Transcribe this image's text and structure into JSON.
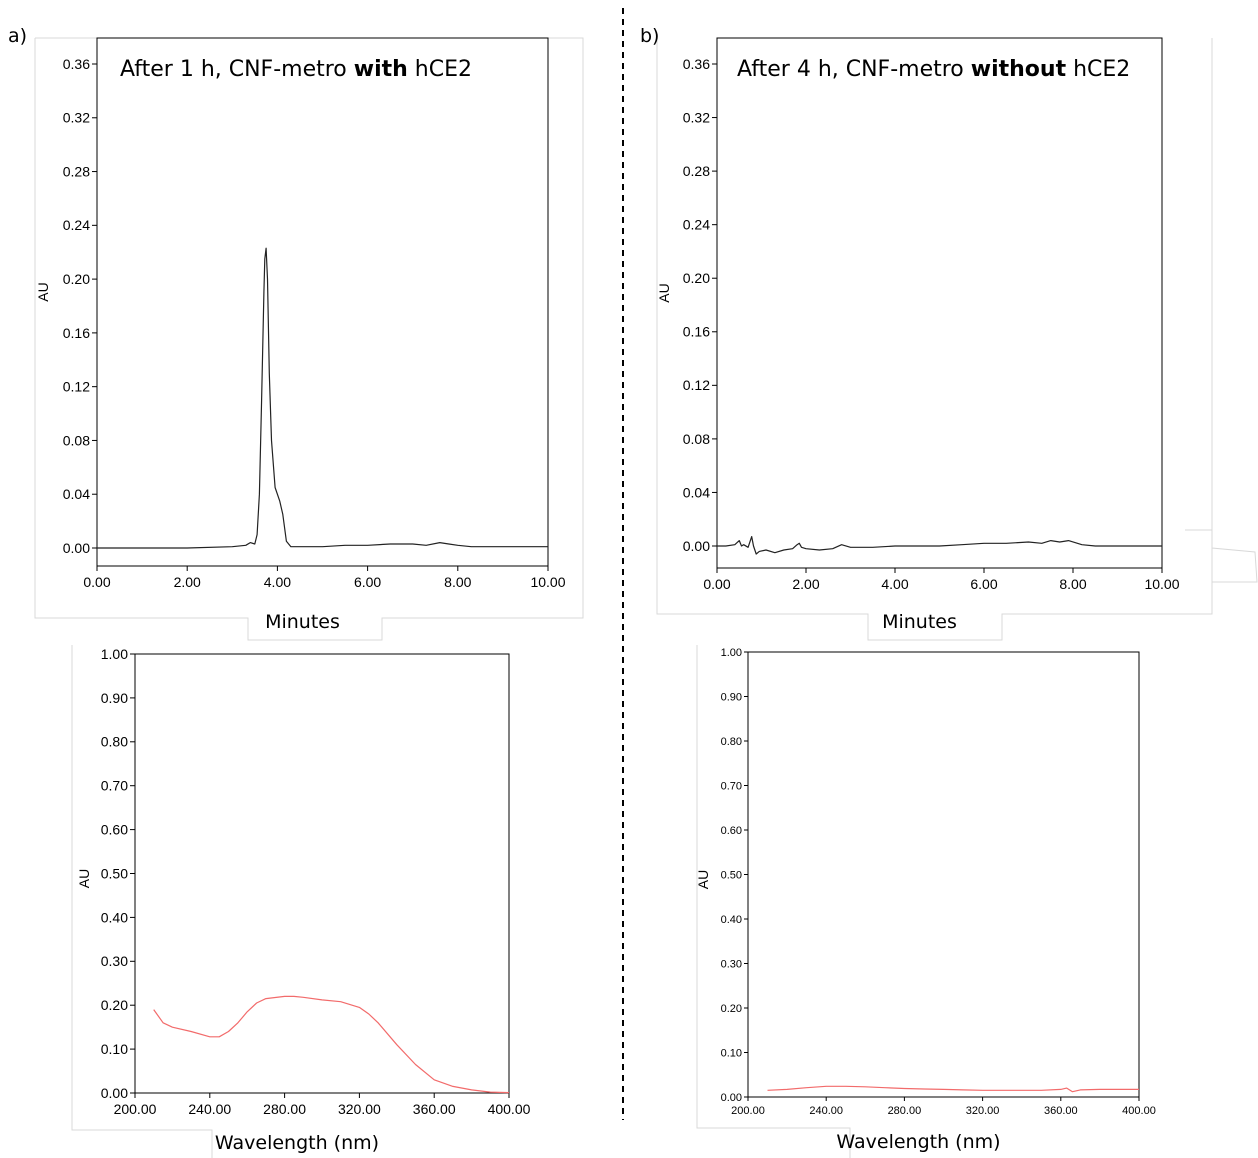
{
  "panels": {
    "a": {
      "label": "a)"
    },
    "b": {
      "label": "b)"
    }
  },
  "colors": {
    "chromatogram": "#222222",
    "spectrum": "#f26b6b",
    "frame": "#000000",
    "panel_border": "#d9d9d9"
  },
  "chart_data": [
    {
      "id": "a-top",
      "type": "line",
      "title_parts": [
        {
          "text": "After 1 h, CNF-metro ",
          "bold": false
        },
        {
          "text": "with",
          "bold": true
        },
        {
          "text": " hCE2",
          "bold": false
        }
      ],
      "xlabel": "Minutes",
      "ylabel": "AU",
      "xlim": [
        0,
        10
      ],
      "ylim": [
        -0.005,
        0.37
      ],
      "xticks": [
        "0.00",
        "2.00",
        "4.00",
        "6.00",
        "8.00",
        "10.00"
      ],
      "yticks": [
        "0.00",
        "0.04",
        "0.08",
        "0.12",
        "0.16",
        "0.20",
        "0.24",
        "0.28",
        "0.32",
        "0.36"
      ],
      "series": [
        {
          "x": [
            0,
            1,
            2,
            3,
            3.3,
            3.4,
            3.5,
            3.55,
            3.6,
            3.65,
            3.7,
            3.72,
            3.75,
            3.78,
            3.82,
            3.87,
            3.95,
            4.05,
            4.12,
            4.2,
            4.3,
            4.5,
            5,
            5.5,
            6,
            6.5,
            7,
            7.3,
            7.6,
            7.8,
            8,
            8.3,
            9,
            10
          ],
          "y": [
            0,
            0,
            0,
            0.001,
            0.002,
            0.004,
            0.003,
            0.01,
            0.04,
            0.11,
            0.19,
            0.215,
            0.223,
            0.2,
            0.13,
            0.08,
            0.045,
            0.035,
            0.025,
            0.005,
            0.001,
            0.001,
            0.001,
            0.002,
            0.002,
            0.003,
            0.003,
            0.002,
            0.004,
            0.003,
            0.002,
            0.001,
            0.001,
            0.001
          ]
        }
      ]
    },
    {
      "id": "a-bottom",
      "type": "line",
      "xlabel": "Wavelength (nm)",
      "ylabel": "AU",
      "xlim": [
        200,
        400
      ],
      "ylim": [
        0,
        1
      ],
      "xticks": [
        "200.00",
        "240.00",
        "280.00",
        "320.00",
        "360.00",
        "400.00"
      ],
      "yticks": [
        "0.00",
        "0.10",
        "0.20",
        "0.30",
        "0.40",
        "0.50",
        "0.60",
        "0.70",
        "0.80",
        "0.90",
        "1.00"
      ],
      "series": [
        {
          "x": [
            210,
            215,
            220,
            230,
            240,
            245,
            250,
            255,
            260,
            265,
            270,
            280,
            285,
            290,
            300,
            310,
            320,
            325,
            330,
            340,
            350,
            360,
            370,
            380,
            390,
            400
          ],
          "y": [
            0.19,
            0.16,
            0.15,
            0.14,
            0.128,
            0.128,
            0.14,
            0.16,
            0.185,
            0.205,
            0.215,
            0.22,
            0.22,
            0.218,
            0.212,
            0.208,
            0.195,
            0.18,
            0.16,
            0.11,
            0.065,
            0.03,
            0.015,
            0.007,
            0.002,
            0.001
          ]
        }
      ]
    },
    {
      "id": "b-top",
      "type": "line",
      "title_parts": [
        {
          "text": "After 4 h, CNF-metro ",
          "bold": false
        },
        {
          "text": "without",
          "bold": true
        },
        {
          "text": " hCE2",
          "bold": false
        }
      ],
      "xlabel": "Minutes",
      "ylabel": "AU",
      "xlim": [
        0,
        10
      ],
      "ylim": [
        -0.018,
        0.37
      ],
      "xticks": [
        "0.00",
        "2.00",
        "4.00",
        "6.00",
        "8.00",
        "10.00"
      ],
      "yticks": [
        "0.00",
        "0.04",
        "0.08",
        "0.12",
        "0.16",
        "0.20",
        "0.24",
        "0.28",
        "0.32",
        "0.36"
      ],
      "series": [
        {
          "x": [
            0,
            0.2,
            0.4,
            0.5,
            0.55,
            0.6,
            0.7,
            0.78,
            0.82,
            0.88,
            0.95,
            1.1,
            1.3,
            1.5,
            1.7,
            1.8,
            1.85,
            1.9,
            2.0,
            2.3,
            2.6,
            2.8,
            3.0,
            3.5,
            4.0,
            4.5,
            5.0,
            5.5,
            6.0,
            6.5,
            7.0,
            7.3,
            7.5,
            7.7,
            7.9,
            8.2,
            8.5,
            9.0,
            9.5,
            10
          ],
          "y": [
            0,
            0,
            0.001,
            0.004,
            0.0,
            0.001,
            -0.001,
            0.007,
            0.0,
            -0.006,
            -0.004,
            -0.003,
            -0.005,
            -0.003,
            -0.002,
            0.001,
            0.002,
            -0.001,
            -0.002,
            -0.003,
            -0.002,
            0.001,
            -0.001,
            -0.001,
            0.0,
            0.0,
            0.0,
            0.001,
            0.002,
            0.002,
            0.003,
            0.002,
            0.004,
            0.003,
            0.004,
            0.001,
            0.0,
            0.0,
            0.0,
            0.0
          ]
        }
      ]
    },
    {
      "id": "b-bottom",
      "type": "line",
      "xlabel": "Wavelength (nm)",
      "ylabel": "AU",
      "xlim": [
        200,
        400
      ],
      "ylim": [
        0,
        1
      ],
      "xticks": [
        "200.00",
        "240.00",
        "280.00",
        "320.00",
        "360.00",
        "400.00"
      ],
      "yticks": [
        "0.00",
        "0.10",
        "0.20",
        "0.30",
        "0.40",
        "0.50",
        "0.60",
        "0.70",
        "0.80",
        "0.90",
        "1.00"
      ],
      "series": [
        {
          "x": [
            210,
            220,
            230,
            240,
            250,
            260,
            270,
            280,
            290,
            300,
            310,
            320,
            330,
            340,
            350,
            360,
            363,
            366,
            370,
            380,
            390,
            400
          ],
          "y": [
            0.015,
            0.017,
            0.021,
            0.024,
            0.024,
            0.023,
            0.021,
            0.019,
            0.018,
            0.017,
            0.016,
            0.015,
            0.015,
            0.015,
            0.015,
            0.017,
            0.02,
            0.012,
            0.016,
            0.017,
            0.017,
            0.017
          ]
        }
      ]
    }
  ]
}
